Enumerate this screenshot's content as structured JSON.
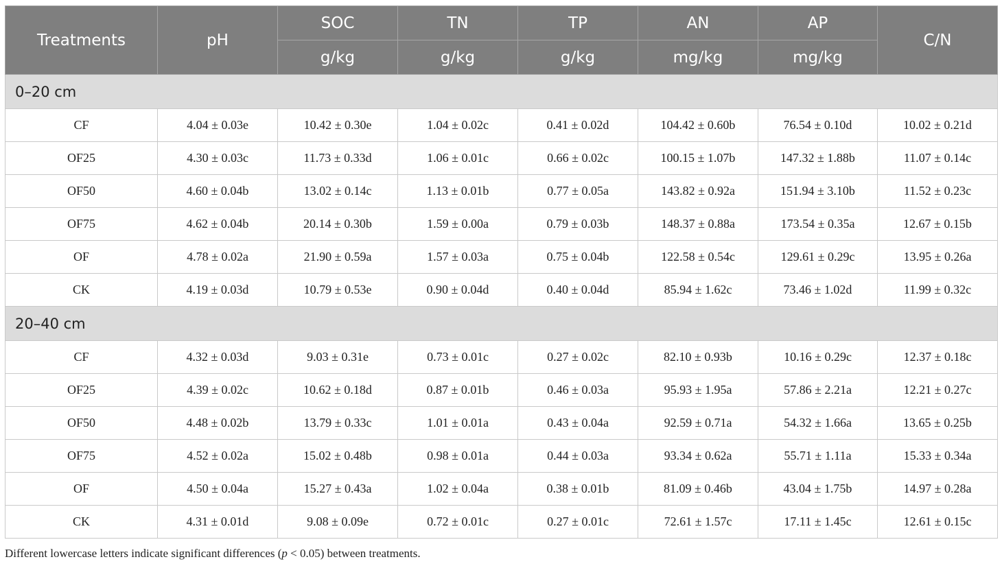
{
  "table": {
    "header": {
      "treatments": "Treatments",
      "columns": [
        {
          "name": "pH"
        },
        {
          "name": "SOC",
          "unit": "g/kg"
        },
        {
          "name": "TN",
          "unit": "g/kg"
        },
        {
          "name": "TP",
          "unit": "g/kg"
        },
        {
          "name": "AN",
          "unit": "mg/kg"
        },
        {
          "name": "AP",
          "unit": "mg/kg"
        },
        {
          "name": "C/N"
        }
      ]
    },
    "sections": [
      {
        "label": "0–20 cm",
        "rows": [
          [
            "CF",
            "4.04 ± 0.03e",
            "10.42 ± 0.30e",
            "1.04 ± 0.02c",
            "0.41 ± 0.02d",
            "104.42 ± 0.60b",
            "76.54 ± 0.10d",
            "10.02 ± 0.21d"
          ],
          [
            "OF25",
            "4.30 ± 0.03c",
            "11.73 ± 0.33d",
            "1.06 ± 0.01c",
            "0.66 ± 0.02c",
            "100.15 ± 1.07b",
            "147.32 ± 1.88b",
            "11.07 ± 0.14c"
          ],
          [
            "OF50",
            "4.60 ± 0.04b",
            "13.02 ± 0.14c",
            "1.13 ± 0.01b",
            "0.77 ± 0.05a",
            "143.82 ± 0.92a",
            "151.94 ± 3.10b",
            "11.52 ± 0.23c"
          ],
          [
            "OF75",
            "4.62 ± 0.04b",
            "20.14 ± 0.30b",
            "1.59 ± 0.00a",
            "0.79 ± 0.03b",
            "148.37 ± 0.88a",
            "173.54 ± 0.35a",
            "12.67 ± 0.15b"
          ],
          [
            "OF",
            "4.78 ± 0.02a",
            "21.90 ± 0.59a",
            "1.57 ± 0.03a",
            "0.75 ± 0.04b",
            "122.58 ± 0.54c",
            "129.61 ± 0.29c",
            "13.95 ± 0.26a"
          ],
          [
            "CK",
            "4.19 ± 0.03d",
            "10.79 ± 0.53e",
            "0.90 ± 0.04d",
            "0.40 ± 0.04d",
            "85.94 ± 1.62c",
            "73.46 ± 1.02d",
            "11.99 ± 0.32c"
          ]
        ]
      },
      {
        "label": "20–40 cm",
        "rows": [
          [
            "CF",
            "4.32 ± 0.03d",
            "9.03 ± 0.31e",
            "0.73 ± 0.01c",
            "0.27 ± 0.02c",
            "82.10 ± 0.93b",
            "10.16 ± 0.29c",
            "12.37 ± 0.18c"
          ],
          [
            "OF25",
            "4.39 ± 0.02c",
            "10.62 ± 0.18d",
            "0.87 ± 0.01b",
            "0.46 ± 0.03a",
            "95.93 ± 1.95a",
            "57.86 ± 2.21a",
            "12.21 ± 0.27c"
          ],
          [
            "OF50",
            "4.48 ± 0.02b",
            "13.79 ± 0.33c",
            "1.01 ± 0.01a",
            "0.43 ± 0.04a",
            "92.59 ± 0.71a",
            "54.32 ± 1.66a",
            "13.65 ± 0.25b"
          ],
          [
            "OF75",
            "4.52 ± 0.02a",
            "15.02 ± 0.48b",
            "0.98 ± 0.01a",
            "0.44 ± 0.03a",
            "93.34 ± 0.62a",
            "55.71 ± 1.11a",
            "15.33 ± 0.34a"
          ],
          [
            "OF",
            "4.50 ± 0.04a",
            "15.27 ± 0.43a",
            "1.02 ± 0.04a",
            "0.38 ± 0.01b",
            "81.09 ± 0.46b",
            "43.04 ± 1.75b",
            "14.97 ± 0.28a"
          ],
          [
            "CK",
            "4.31 ± 0.01d",
            "9.08 ± 0.09e",
            "0.72 ± 0.01c",
            "0.27 ± 0.01c",
            "72.61 ± 1.57c",
            "17.11 ± 1.45c",
            "12.61 ± 0.15c"
          ]
        ]
      }
    ]
  },
  "footnote": [
    "Different lowercase letters indicate significant differences (",
    "p",
    " < 0.05) between treatments."
  ]
}
